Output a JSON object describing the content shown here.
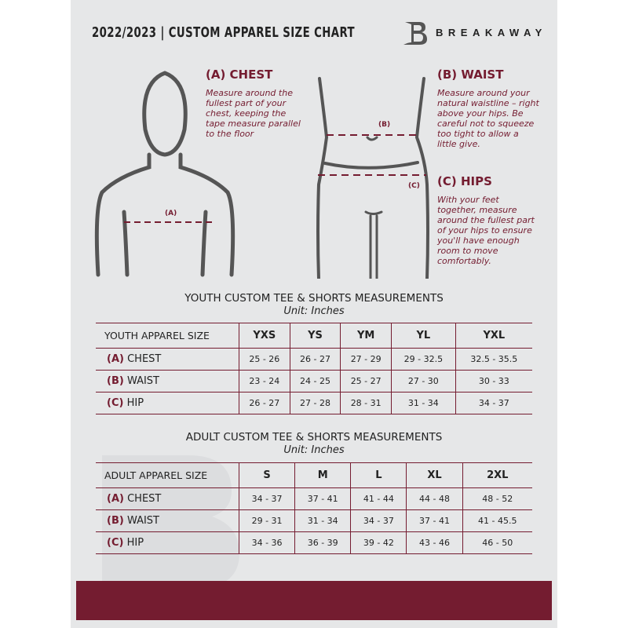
{
  "header": {
    "title": "2022/2023  |  CUSTOM APPAREL SIZE CHART",
    "brand": "BREAKAWAY"
  },
  "colors": {
    "accent": "#741c30",
    "background": "#e6e7e8"
  },
  "chest": {
    "heading": "(A) CHEST",
    "description": "Measure around the fullest part of your chest, keeping the tape measure parallel to the floor",
    "diagram_label": "(A)"
  },
  "waist": {
    "heading": "(B) WAIST",
    "description": "Measure around your natural waistline – right above your hips. Be careful not to squeeze too tight to allow a little give.",
    "diagram_label": "(B)"
  },
  "hips": {
    "heading": "(C) HIPS",
    "description": "With your feet together, measure around the fullest part of your hips to ensure you'll have enough room to move comfortably.",
    "diagram_label": "(C)"
  },
  "youth": {
    "title": "YOUTH CUSTOM TEE & SHORTS MEASUREMENTS",
    "unit": "Unit: Inches",
    "size_label": "YOUTH APPAREL SIZE",
    "sizes": [
      "YXS",
      "YS",
      "YM",
      "YL",
      "YXL"
    ],
    "rows": [
      {
        "letter": "(A)",
        "name": "CHEST",
        "values": [
          "25 - 26",
          "26 - 27",
          "27 - 29",
          "29 - 32.5",
          "32.5 - 35.5"
        ]
      },
      {
        "letter": "(B)",
        "name": "WAIST",
        "values": [
          "23 - 24",
          "24 - 25",
          "25 - 27",
          "27 - 30",
          "30 - 33"
        ]
      },
      {
        "letter": "(C)",
        "name": "HIP",
        "values": [
          "26 - 27",
          "27 - 28",
          "28 - 31",
          "31 - 34",
          "34 - 37"
        ]
      }
    ]
  },
  "adult": {
    "title": "ADULT CUSTOM TEE & SHORTS MEASUREMENTS",
    "unit": "Unit: Inches",
    "size_label": "ADULT APPAREL SIZE",
    "sizes": [
      "S",
      "M",
      "L",
      "XL",
      "2XL"
    ],
    "rows": [
      {
        "letter": "(A)",
        "name": "CHEST",
        "values": [
          "34 - 37",
          "37 - 41",
          "41 - 44",
          "44 - 48",
          "48 - 52"
        ]
      },
      {
        "letter": "(B)",
        "name": "WAIST",
        "values": [
          "29 - 31",
          "31 - 34",
          "34 - 37",
          "37 - 41",
          "41 - 45.5"
        ]
      },
      {
        "letter": "(C)",
        "name": "HIP",
        "values": [
          "34 - 36",
          "36 - 39",
          "39 - 42",
          "43 - 46",
          "46 - 50"
        ]
      }
    ]
  }
}
